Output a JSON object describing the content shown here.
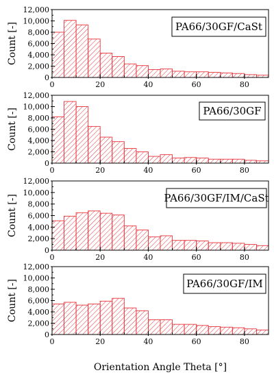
{
  "chart_data": [
    {
      "type": "bar",
      "title": "PA66/30GF/CaSt",
      "ylabel": "Count [-]",
      "xlabel": "",
      "xlim": [
        0,
        90
      ],
      "ylim": [
        0,
        12000
      ],
      "x_ticks": [
        0,
        20,
        40,
        60,
        80
      ],
      "y_ticks": [
        0,
        2000,
        4000,
        6000,
        8000,
        10000,
        12000
      ],
      "y_tick_labels": [
        "0",
        "2,000",
        "4,000",
        "6,000",
        "8,000",
        "10,000",
        "12,000"
      ],
      "bin_width": 5,
      "bin_starts": [
        0,
        5,
        10,
        15,
        20,
        25,
        30,
        35,
        40,
        45,
        50,
        55,
        60,
        65,
        70,
        75,
        80,
        85
      ],
      "values": [
        8000,
        10100,
        9300,
        6800,
        4300,
        3700,
        2400,
        2100,
        1400,
        1500,
        1100,
        1000,
        1000,
        900,
        800,
        700,
        500,
        400
      ]
    },
    {
      "type": "bar",
      "title": "PA66/30GF",
      "ylabel": "Count [-]",
      "xlabel": "",
      "xlim": [
        0,
        90
      ],
      "ylim": [
        0,
        12000
      ],
      "x_ticks": [
        0,
        20,
        40,
        60,
        80
      ],
      "y_ticks": [
        0,
        2000,
        4000,
        6000,
        8000,
        10000,
        12000
      ],
      "y_tick_labels": [
        "0",
        "2,000",
        "4,000",
        "6,000",
        "8,000",
        "10,000",
        "12,000"
      ],
      "bin_width": 5,
      "bin_starts": [
        0,
        5,
        10,
        15,
        20,
        25,
        30,
        35,
        40,
        45,
        50,
        55,
        60,
        65,
        70,
        75,
        80,
        85
      ],
      "values": [
        8200,
        10900,
        10000,
        6500,
        4600,
        3800,
        2600,
        2000,
        1200,
        1500,
        900,
        1000,
        900,
        700,
        700,
        700,
        500,
        400
      ]
    },
    {
      "type": "bar",
      "title": "PA66/30GF/IM/CaSt",
      "ylabel": "Count [-]",
      "xlabel": "",
      "xlim": [
        0,
        90
      ],
      "ylim": [
        0,
        12000
      ],
      "x_ticks": [
        0,
        20,
        40,
        60,
        80
      ],
      "y_ticks": [
        0,
        2000,
        4000,
        6000,
        8000,
        10000,
        12000
      ],
      "y_tick_labels": [
        "0",
        "2,000",
        "4,000",
        "6,000",
        "8,000",
        "10,000",
        "12,000"
      ],
      "bin_width": 5,
      "bin_starts": [
        0,
        5,
        10,
        15,
        20,
        25,
        30,
        35,
        40,
        45,
        50,
        55,
        60,
        65,
        70,
        75,
        80,
        85
      ],
      "values": [
        5100,
        5900,
        6500,
        6800,
        6400,
        6100,
        4200,
        3500,
        2300,
        2500,
        1700,
        1700,
        1600,
        1300,
        1300,
        1200,
        1000,
        800
      ]
    },
    {
      "type": "bar",
      "title": "PA66/30GF/IM",
      "ylabel": "Count [-]",
      "xlabel": "Orientation Angle Theta [°]",
      "xlim": [
        0,
        90
      ],
      "ylim": [
        0,
        12000
      ],
      "x_ticks": [
        0,
        20,
        40,
        60,
        80
      ],
      "y_ticks": [
        0,
        2000,
        4000,
        6000,
        8000,
        10000,
        12000
      ],
      "y_tick_labels": [
        "0",
        "2,000",
        "4,000",
        "6,000",
        "8,000",
        "10,000",
        "12,000"
      ],
      "bin_width": 5,
      "bin_starts": [
        0,
        5,
        10,
        15,
        20,
        25,
        30,
        35,
        40,
        45,
        50,
        55,
        60,
        65,
        70,
        75,
        80,
        85
      ],
      "values": [
        5400,
        5700,
        5200,
        5400,
        5900,
        6400,
        4700,
        4200,
        2600,
        2600,
        1800,
        1800,
        1600,
        1400,
        1300,
        1200,
        1000,
        800
      ]
    }
  ],
  "colors": {
    "bar_stroke": "#e8333a",
    "hatch": "#e8333a",
    "axis": "#000000"
  }
}
